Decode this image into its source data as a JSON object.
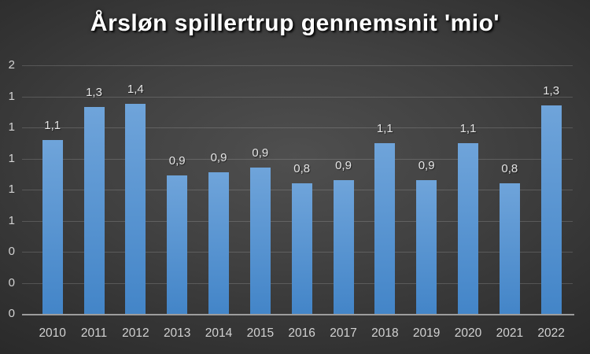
{
  "chart_data": {
    "type": "bar",
    "title": "Årsløn spillertrup gennemsnit 'mio'",
    "categories": [
      "2010",
      "2011",
      "2012",
      "2013",
      "2014",
      "2015",
      "2016",
      "2017",
      "2018",
      "2019",
      "2020",
      "2021",
      "2022"
    ],
    "values": [
      1.12,
      1.33,
      1.35,
      0.89,
      0.91,
      0.94,
      0.84,
      0.86,
      1.1,
      0.86,
      1.1,
      0.84,
      1.34
    ],
    "bar_labels": [
      "1,1",
      "1,3",
      "1,4",
      "0,9",
      "0,9",
      "0,9",
      "0,8",
      "0,9",
      "1,1",
      "0,9",
      "1,1",
      "0,8",
      "1,3"
    ],
    "xlabel": "",
    "ylabel": "",
    "ylim": [
      0,
      1.6
    ],
    "ytick_values": [
      0,
      0.2,
      0.4,
      0.6,
      0.8,
      1.0,
      1.2,
      1.4,
      1.6
    ],
    "ytick_labels": [
      "0",
      "0",
      "0",
      "1",
      "1",
      "1",
      "1",
      "1",
      "2"
    ],
    "grid": true,
    "legend": false,
    "decimal_separator": ","
  },
  "colors": {
    "bar_gradient_top": "#6fa4da",
    "bar_gradient_bottom": "#4385c8",
    "background_center": "#4f4f4f",
    "background_edge": "#232323",
    "title_text": "#ffffff",
    "axis_text": "#d2d2d2",
    "data_label_text": "#e6e6e6",
    "axis_line": "#9d9d9d"
  }
}
